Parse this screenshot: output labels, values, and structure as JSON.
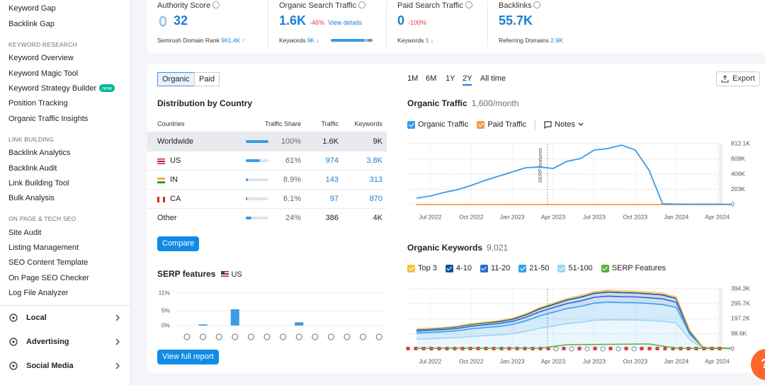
{
  "sidebar": {
    "groups": [
      {
        "items": [
          "Keyword Gap",
          "Backlink Gap"
        ]
      },
      {
        "heading": "KEYWORD RESEARCH",
        "items": [
          "Keyword Overview",
          "Keyword Magic Tool",
          {
            "label": "Keyword Strategy Builder",
            "badge": "new"
          },
          "Position Tracking",
          "Organic Traffic Insights"
        ]
      },
      {
        "heading": "LINK BUILDING",
        "items": [
          "Backlink Analytics",
          "Backlink Audit",
          "Link Building Tool",
          "Bulk Analysis"
        ]
      },
      {
        "heading": "ON PAGE & TECH SEO",
        "items": [
          "Site Audit",
          "Listing Management",
          "SEO Content Template",
          "On Page SEO Checker",
          "Log File Analyzer"
        ]
      }
    ],
    "sections": [
      "Local",
      "Advertising",
      "Social Media"
    ]
  },
  "metrics": [
    {
      "label": "Authority Score",
      "value": "32",
      "sub_label": "Semrush Domain Rank",
      "sub_value": "961.4K"
    },
    {
      "label": "Organic Search Traffic",
      "value": "1.6K",
      "change": "-46%",
      "link": "View details",
      "sub_label": "Keywords",
      "sub_value": "9K"
    },
    {
      "label": "Paid Search Traffic",
      "value": "0",
      "change": "-100%",
      "sub_label": "Keywords",
      "sub_value": "1"
    },
    {
      "label": "Backlinks",
      "value": "55.7K",
      "sub_label": "Referring Domains",
      "sub_value": "2.9K"
    }
  ],
  "tabs": {
    "items": [
      "Organic",
      "Paid"
    ],
    "active": 0
  },
  "distribution": {
    "title": "Distribution by Country",
    "columns": [
      "Countries",
      "Traffic Share",
      "Traffic",
      "Keywords"
    ],
    "rows": [
      {
        "country": "Worldwide",
        "share": {
          "value": 100,
          "label": "100%"
        },
        "traffic": "1.6K",
        "keywords": "9K"
      },
      {
        "country": "US",
        "share": {
          "value": 61,
          "label": "61%"
        },
        "traffic": "974",
        "keywords": "3.8K"
      },
      {
        "country": "IN",
        "share": {
          "value": 8.9,
          "label": "8.9%"
        },
        "traffic": "143",
        "keywords": "313"
      },
      {
        "country": "CA",
        "share": {
          "value": 6.1,
          "label": "6.1%"
        },
        "traffic": "97",
        "keywords": "870"
      },
      {
        "country": "Other",
        "share": {
          "value": 24,
          "label": "24%"
        },
        "traffic": "386",
        "keywords": "4K"
      }
    ]
  },
  "compare": "Compare",
  "full_report": "View full report",
  "ranges": {
    "items": [
      "1M",
      "6M",
      "1Y",
      "2Y",
      "All time"
    ],
    "active": 3
  },
  "export": "Export",
  "help": "?",
  "chart_data": [
    {
      "type": "bar",
      "title": "SERP features",
      "subtitle": "US",
      "color": "#3a9be6",
      "values": [
        0,
        0.4,
        0,
        5.5,
        0,
        0,
        0,
        1.1,
        0,
        0,
        0,
        0,
        0
      ],
      "ylim": [
        0,
        11
      ],
      "yticks": [
        {
          "value": 11,
          "label": "11%"
        },
        {
          "value": 5,
          "label": "5%"
        },
        {
          "value": 0,
          "label": "0%"
        }
      ]
    },
    {
      "type": "line",
      "title": "Organic Traffic",
      "subtitle": "1,600/month",
      "x": [
        null,
        "Jul 2022",
        null,
        null,
        "Oct 2022",
        null,
        null,
        "Jan 2023",
        null,
        null,
        "Apr 2023",
        null,
        null,
        "Jul 2023",
        null,
        null,
        "Oct 2023",
        null,
        null,
        "Jan 2024",
        null,
        null,
        "Apr 2024",
        null
      ],
      "series": [
        {
          "name": "Organic Traffic",
          "color": "#3a9be6",
          "values": [
            85000,
            113000,
            160000,
            198000,
            255000,
            321000,
            378000,
            434000,
            491000,
            500000,
            481000,
            576000,
            614000,
            727000,
            746000,
            793000,
            727000,
            462000,
            10000,
            6000,
            5000,
            4000,
            4000,
            3000
          ]
        },
        {
          "name": "Paid Traffic",
          "color": "#f29b4b",
          "values": [
            0,
            0,
            0,
            0,
            0,
            0,
            0,
            0,
            0,
            0,
            0,
            0,
            0,
            0,
            0,
            0,
            0,
            0,
            0,
            0,
            0,
            0,
            0,
            0
          ]
        }
      ],
      "notes_label": "Notes",
      "annotations": [
        {
          "x": "Apr 2023",
          "text": "SERP features"
        }
      ],
      "ylim": [
        0,
        812100
      ],
      "yticks": [
        {
          "value": 812100,
          "label": "812.1K"
        },
        {
          "value": 609000,
          "label": "609K"
        },
        {
          "value": 406000,
          "label": "406K"
        },
        {
          "value": 203000,
          "label": "203K"
        },
        0
      ],
      "grid": true
    },
    {
      "type": "stacked_area",
      "title": "Organic Keywords",
      "subtitle": "9,021",
      "x": [
        null,
        "Jul 2022",
        null,
        null,
        "Oct 2022",
        null,
        null,
        "Jan 2023",
        null,
        null,
        "Apr 2023",
        null,
        null,
        "Jul 2023",
        null,
        null,
        "Oct 2023",
        null,
        null,
        "Jan 2024",
        null,
        null,
        "Apr 2024",
        null
      ],
      "series": [
        {
          "name": "Top 3",
          "color": "#f3c141",
          "values": [
            4000,
            4000,
            4000,
            5000,
            5000,
            5000,
            6000,
            6000,
            7000,
            8000,
            9000,
            10000,
            11000,
            11000,
            12000,
            11000,
            11000,
            11000,
            11000,
            10000,
            4000,
            0,
            0,
            0
          ]
        },
        {
          "name": "4-10",
          "color": "#1b4f9c",
          "values": [
            9000,
            9000,
            10000,
            11000,
            12000,
            12000,
            13000,
            14000,
            16000,
            19000,
            21000,
            23000,
            25000,
            26000,
            27000,
            27000,
            26000,
            26000,
            26000,
            24000,
            8000,
            1000,
            0,
            0
          ]
        },
        {
          "name": "11-20",
          "color": "#2b6cd0",
          "values": [
            13000,
            14000,
            14000,
            15000,
            17000,
            18000,
            19000,
            20000,
            23000,
            27000,
            30000,
            33000,
            35000,
            38000,
            39000,
            38000,
            38000,
            37000,
            37000,
            34000,
            12000,
            1000,
            1000,
            1000
          ]
        },
        {
          "name": "21-50",
          "color": "#36a3e6",
          "values": [
            39000,
            41000,
            42000,
            45000,
            50000,
            53000,
            56000,
            60000,
            69000,
            81000,
            90000,
            99000,
            105000,
            113000,
            116000,
            114000,
            113000,
            112000,
            110000,
            102000,
            36000,
            2000,
            2000,
            1000
          ]
        },
        {
          "name": "51-100",
          "color": "#9fd5f5",
          "values": [
            65000,
            67000,
            70000,
            74000,
            81000,
            87000,
            91000,
            100000,
            115000,
            135000,
            150000,
            165000,
            174000,
            187000,
            191000,
            190000,
            190000,
            186000,
            181000,
            170000,
            60000,
            4000,
            2000,
            2000
          ]
        }
      ],
      "legend_extra": [
        {
          "name": "SERP Features",
          "color": "#54b33e"
        }
      ],
      "ylim": [
        0,
        394300
      ],
      "yticks": [
        {
          "value": 394300,
          "label": "394.3K"
        },
        {
          "value": 295700,
          "label": "295.7K"
        },
        {
          "value": 197200,
          "label": "197.2K"
        },
        {
          "value": 98600,
          "label": "98.6K"
        },
        0
      ],
      "grid": true
    }
  ]
}
